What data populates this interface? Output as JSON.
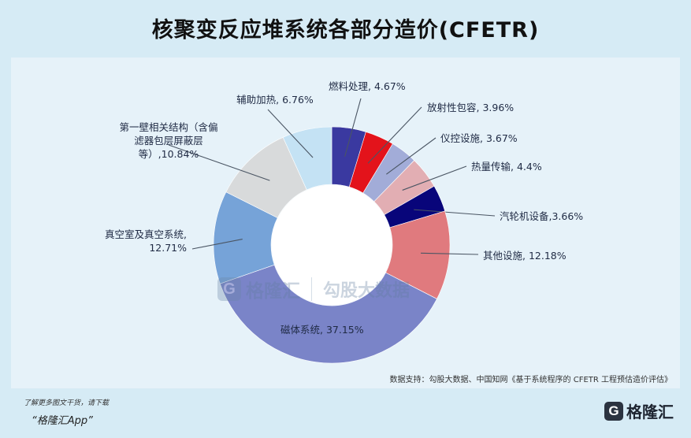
{
  "title": "核聚变反应堆系统各部分造价(CFETR)",
  "chart_data": {
    "type": "pie",
    "title": "核聚变反应堆系统各部分造价(CFETR)",
    "slices": [
      {
        "name": "燃料处理",
        "value": 4.67,
        "label": "燃料处理, 4.67%",
        "color": "#3a39a0"
      },
      {
        "name": "放射性包容",
        "value": 3.96,
        "label": "放射性包容, 3.96%",
        "color": "#e3131b"
      },
      {
        "name": "仪控设施",
        "value": 3.67,
        "label": "仪控设施, 3.67%",
        "color": "#a2acd8"
      },
      {
        "name": "热量传输",
        "value": 4.4,
        "label": "热量传输, 4.4%",
        "color": "#e2aeb3"
      },
      {
        "name": "汽轮机设备",
        "value": 3.66,
        "label": "汽轮机设备,3.66%",
        "color": "#08057a"
      },
      {
        "name": "其他设施",
        "value": 12.18,
        "label": "其他设施, 12.18%",
        "color": "#e07a7e"
      },
      {
        "name": "磁体系统",
        "value": 37.15,
        "label": "磁体系统, 37.15%",
        "color": "#7a84c8"
      },
      {
        "name": "真空室及真空系统",
        "value": 12.71,
        "label": [
          "真空室及真空系统,",
          "12.71%"
        ],
        "color": "#76a3d8"
      },
      {
        "name": "第一壁相关结构（含偏滤器包层屏蔽层等）",
        "value": 10.84,
        "label": [
          "第一壁相关结构（含偏",
          "滤器包层屏蔽层",
          "等）,10.84%"
        ],
        "color": "#d8dadb"
      },
      {
        "name": "辅助加热",
        "value": 6.76,
        "label": "辅助加热, 6.76%",
        "color": "#c4e2f4"
      }
    ]
  },
  "watermark": {
    "brand": "格隆汇",
    "partner": "勾股大数据"
  },
  "source": "数据支持：勾股大数据、中国知网《基于系统程序的 CFETR 工程预估造价评估》",
  "footer": {
    "note": "了解更多图文干货，请下载",
    "app": "“格隆汇App”",
    "logo_letter": "G",
    "logo_text": "格隆汇"
  }
}
